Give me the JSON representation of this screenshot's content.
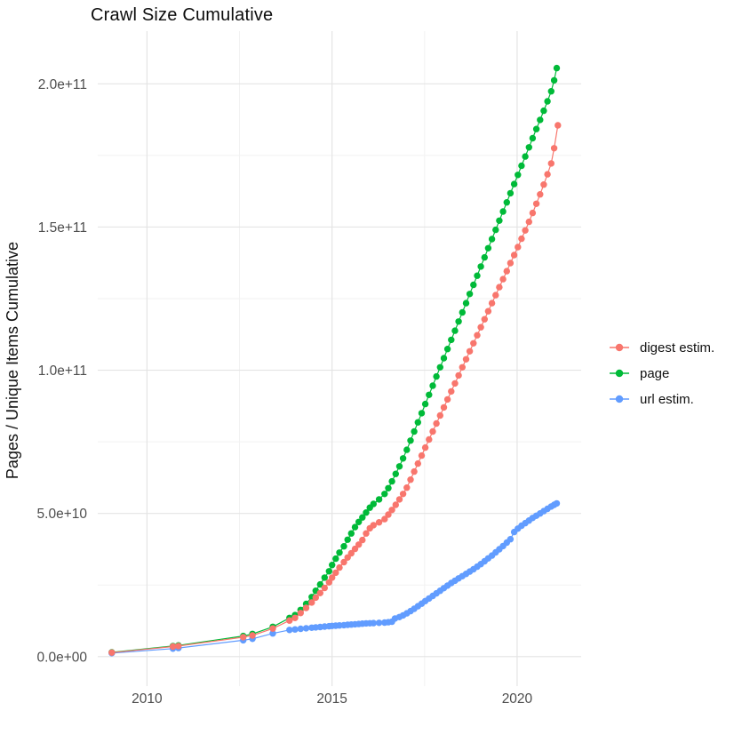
{
  "chart_data": {
    "type": "scatter",
    "title": "Crawl Size Cumulative",
    "xlabel": "",
    "ylabel": "Pages / Unique Items Cumulative",
    "y_unit": "1e9",
    "y_unit_note": "series values are in units of 10^9 items (billions), e.g. 205.5 = 2.055e+11",
    "xlim": [
      2008.67,
      2021.73
    ],
    "ylim": [
      -10.3,
      218.4
    ],
    "grid": true,
    "background": "#FFFFFF",
    "grid_major_color": "#E4E4E4",
    "grid_minor_color": "#F2F2F2",
    "tick_text_color": "#4D4D4D",
    "legend_position": "right",
    "x_ticks": [
      {
        "value": 2010,
        "label": "2010"
      },
      {
        "value": 2015,
        "label": "2015"
      },
      {
        "value": 2020,
        "label": "2020"
      }
    ],
    "x_minor_ticks": [
      2012.5,
      2017.5
    ],
    "y_ticks": [
      {
        "value": 0,
        "label": "0.0e+00"
      },
      {
        "value": 50,
        "label": "5.0e+10"
      },
      {
        "value": 100,
        "label": "1.0e+11"
      },
      {
        "value": 150,
        "label": "1.5e+11"
      },
      {
        "value": 200,
        "label": "2.0e+11"
      }
    ],
    "y_minor_ticks": [
      25,
      75,
      125,
      175
    ],
    "draw_order": [
      1,
      2,
      0
    ],
    "series": [
      {
        "name": "digest estim.",
        "color": "#F8766D",
        "points": [
          [
            2009.05,
            1.4
          ],
          [
            2010.7,
            3.5
          ],
          [
            2010.85,
            3.7
          ],
          [
            2012.6,
            6.8
          ],
          [
            2012.85,
            7.4
          ],
          [
            2013.4,
            9.8
          ],
          [
            2013.85,
            12.6
          ],
          [
            2014.0,
            13.5
          ],
          [
            2014.15,
            15.2
          ],
          [
            2014.3,
            17.0
          ],
          [
            2014.45,
            18.9
          ],
          [
            2014.56,
            20.6
          ],
          [
            2014.68,
            22.2
          ],
          [
            2014.8,
            24.0
          ],
          [
            2014.92,
            25.9
          ],
          [
            2015.0,
            27.6
          ],
          [
            2015.1,
            29.3
          ],
          [
            2015.2,
            31.1
          ],
          [
            2015.32,
            33.0
          ],
          [
            2015.42,
            34.6
          ],
          [
            2015.52,
            36.1
          ],
          [
            2015.62,
            37.6
          ],
          [
            2015.72,
            39.1
          ],
          [
            2015.82,
            40.7
          ],
          [
            2015.92,
            43.0
          ],
          [
            2016.02,
            44.8
          ],
          [
            2016.12,
            45.9
          ],
          [
            2016.27,
            46.9
          ],
          [
            2016.42,
            48.0
          ],
          [
            2016.52,
            49.6
          ],
          [
            2016.62,
            51.2
          ],
          [
            2016.72,
            53.0
          ],
          [
            2016.82,
            54.9
          ],
          [
            2016.92,
            56.8
          ],
          [
            2017.02,
            59.0
          ],
          [
            2017.12,
            61.8
          ],
          [
            2017.22,
            64.6
          ],
          [
            2017.32,
            67.4
          ],
          [
            2017.42,
            70.2
          ],
          [
            2017.52,
            73.0
          ],
          [
            2017.62,
            75.8
          ],
          [
            2017.72,
            78.6
          ],
          [
            2017.82,
            81.4
          ],
          [
            2017.92,
            84.2
          ],
          [
            2018.02,
            87.0
          ],
          [
            2018.12,
            89.8
          ],
          [
            2018.22,
            92.6
          ],
          [
            2018.32,
            95.4
          ],
          [
            2018.42,
            98.2
          ],
          [
            2018.52,
            101.0
          ],
          [
            2018.62,
            103.8
          ],
          [
            2018.72,
            106.6
          ],
          [
            2018.82,
            109.4
          ],
          [
            2018.92,
            112.2
          ],
          [
            2019.02,
            115.0
          ],
          [
            2019.12,
            117.8
          ],
          [
            2019.22,
            120.6
          ],
          [
            2019.32,
            123.4
          ],
          [
            2019.42,
            126.2
          ],
          [
            2019.52,
            129.0
          ],
          [
            2019.62,
            131.8
          ],
          [
            2019.72,
            134.6
          ],
          [
            2019.82,
            137.4
          ],
          [
            2019.92,
            140.2
          ],
          [
            2020.02,
            143.0
          ],
          [
            2020.12,
            145.9
          ],
          [
            2020.22,
            148.8
          ],
          [
            2020.32,
            151.8
          ],
          [
            2020.42,
            154.9
          ],
          [
            2020.52,
            158.1
          ],
          [
            2020.62,
            161.4
          ],
          [
            2020.72,
            164.8
          ],
          [
            2020.82,
            168.4
          ],
          [
            2020.92,
            172.2
          ],
          [
            2021.0,
            177.5
          ],
          [
            2021.1,
            185.5
          ]
        ]
      },
      {
        "name": "page",
        "color": "#00BA38",
        "points": [
          [
            2009.05,
            1.5
          ],
          [
            2010.7,
            3.7
          ],
          [
            2010.85,
            3.9
          ],
          [
            2012.6,
            7.2
          ],
          [
            2012.85,
            7.9
          ],
          [
            2013.4,
            10.4
          ],
          [
            2013.85,
            13.5
          ],
          [
            2014.0,
            14.5
          ],
          [
            2014.15,
            16.3
          ],
          [
            2014.3,
            18.4
          ],
          [
            2014.45,
            20.8
          ],
          [
            2014.56,
            23.0
          ],
          [
            2014.68,
            25.2
          ],
          [
            2014.8,
            27.6
          ],
          [
            2014.92,
            29.8
          ],
          [
            2015.0,
            32.0
          ],
          [
            2015.1,
            34.2
          ],
          [
            2015.2,
            36.3
          ],
          [
            2015.32,
            38.5
          ],
          [
            2015.42,
            40.8
          ],
          [
            2015.52,
            43.0
          ],
          [
            2015.62,
            45.2
          ],
          [
            2015.72,
            47.0
          ],
          [
            2015.82,
            48.6
          ],
          [
            2015.92,
            50.3
          ],
          [
            2016.02,
            52.0
          ],
          [
            2016.12,
            53.3
          ],
          [
            2016.27,
            54.9
          ],
          [
            2016.42,
            56.8
          ],
          [
            2016.52,
            58.8
          ],
          [
            2016.62,
            61.2
          ],
          [
            2016.72,
            63.8
          ],
          [
            2016.82,
            66.4
          ],
          [
            2016.92,
            69.2
          ],
          [
            2017.02,
            72.2
          ],
          [
            2017.12,
            75.4
          ],
          [
            2017.22,
            78.6
          ],
          [
            2017.32,
            81.8
          ],
          [
            2017.42,
            85.0
          ],
          [
            2017.52,
            88.2
          ],
          [
            2017.62,
            91.4
          ],
          [
            2017.72,
            94.6
          ],
          [
            2017.82,
            97.8
          ],
          [
            2017.92,
            101.0
          ],
          [
            2018.02,
            104.2
          ],
          [
            2018.12,
            107.4
          ],
          [
            2018.22,
            110.6
          ],
          [
            2018.32,
            113.8
          ],
          [
            2018.42,
            117.0
          ],
          [
            2018.52,
            120.2
          ],
          [
            2018.62,
            123.4
          ],
          [
            2018.72,
            126.6
          ],
          [
            2018.82,
            129.8
          ],
          [
            2018.92,
            133.0
          ],
          [
            2019.02,
            136.2
          ],
          [
            2019.12,
            139.4
          ],
          [
            2019.22,
            142.6
          ],
          [
            2019.32,
            145.8
          ],
          [
            2019.42,
            149.0
          ],
          [
            2019.52,
            152.2
          ],
          [
            2019.62,
            155.4
          ],
          [
            2019.72,
            158.6
          ],
          [
            2019.82,
            161.8
          ],
          [
            2019.92,
            165.0
          ],
          [
            2020.02,
            168.2
          ],
          [
            2020.12,
            171.4
          ],
          [
            2020.22,
            174.6
          ],
          [
            2020.32,
            177.8
          ],
          [
            2020.42,
            181.0
          ],
          [
            2020.52,
            184.2
          ],
          [
            2020.62,
            187.4
          ],
          [
            2020.72,
            190.6
          ],
          [
            2020.82,
            193.9
          ],
          [
            2020.92,
            197.4
          ],
          [
            2021.0,
            201.2
          ],
          [
            2021.07,
            205.5
          ]
        ]
      },
      {
        "name": "url estim.",
        "color": "#619CFF",
        "points": [
          [
            2009.05,
            1.2
          ],
          [
            2010.7,
            2.8
          ],
          [
            2010.85,
            3.0
          ],
          [
            2012.6,
            5.7
          ],
          [
            2012.85,
            6.2
          ],
          [
            2013.4,
            8.1
          ],
          [
            2013.85,
            9.3
          ],
          [
            2014.0,
            9.5
          ],
          [
            2014.15,
            9.7
          ],
          [
            2014.3,
            9.9
          ],
          [
            2014.45,
            10.1
          ],
          [
            2014.56,
            10.2
          ],
          [
            2014.68,
            10.35
          ],
          [
            2014.8,
            10.5
          ],
          [
            2014.92,
            10.6
          ],
          [
            2015.0,
            10.7
          ],
          [
            2015.1,
            10.8
          ],
          [
            2015.2,
            10.9
          ],
          [
            2015.32,
            11.0
          ],
          [
            2015.42,
            11.1
          ],
          [
            2015.52,
            11.2
          ],
          [
            2015.62,
            11.3
          ],
          [
            2015.72,
            11.4
          ],
          [
            2015.82,
            11.5
          ],
          [
            2015.92,
            11.6
          ],
          [
            2016.02,
            11.65
          ],
          [
            2016.12,
            11.7
          ],
          [
            2016.27,
            11.8
          ],
          [
            2016.42,
            11.9
          ],
          [
            2016.52,
            12.0
          ],
          [
            2016.62,
            12.2
          ],
          [
            2016.7,
            13.3
          ],
          [
            2016.82,
            13.8
          ],
          [
            2016.92,
            14.4
          ],
          [
            2017.02,
            15.1
          ],
          [
            2017.12,
            15.9
          ],
          [
            2017.22,
            16.7
          ],
          [
            2017.32,
            17.6
          ],
          [
            2017.42,
            18.5
          ],
          [
            2017.52,
            19.4
          ],
          [
            2017.62,
            20.3
          ],
          [
            2017.72,
            21.2
          ],
          [
            2017.82,
            22.1
          ],
          [
            2017.92,
            23.0
          ],
          [
            2018.02,
            23.9
          ],
          [
            2018.12,
            24.8
          ],
          [
            2018.22,
            25.7
          ],
          [
            2018.32,
            26.5
          ],
          [
            2018.42,
            27.3
          ],
          [
            2018.52,
            28.1
          ],
          [
            2018.62,
            28.9
          ],
          [
            2018.72,
            29.7
          ],
          [
            2018.82,
            30.5
          ],
          [
            2018.92,
            31.4
          ],
          [
            2019.02,
            32.3
          ],
          [
            2019.12,
            33.3
          ],
          [
            2019.22,
            34.3
          ],
          [
            2019.32,
            35.3
          ],
          [
            2019.42,
            36.4
          ],
          [
            2019.52,
            37.5
          ],
          [
            2019.62,
            38.6
          ],
          [
            2019.72,
            39.8
          ],
          [
            2019.82,
            41.0
          ],
          [
            2019.92,
            43.5
          ],
          [
            2020.02,
            44.7
          ],
          [
            2020.12,
            45.7
          ],
          [
            2020.22,
            46.6
          ],
          [
            2020.32,
            47.5
          ],
          [
            2020.42,
            48.4
          ],
          [
            2020.52,
            49.2
          ],
          [
            2020.62,
            50.0
          ],
          [
            2020.72,
            50.8
          ],
          [
            2020.82,
            51.6
          ],
          [
            2020.92,
            52.4
          ],
          [
            2021.0,
            53.0
          ],
          [
            2021.07,
            53.5
          ]
        ]
      }
    ]
  }
}
